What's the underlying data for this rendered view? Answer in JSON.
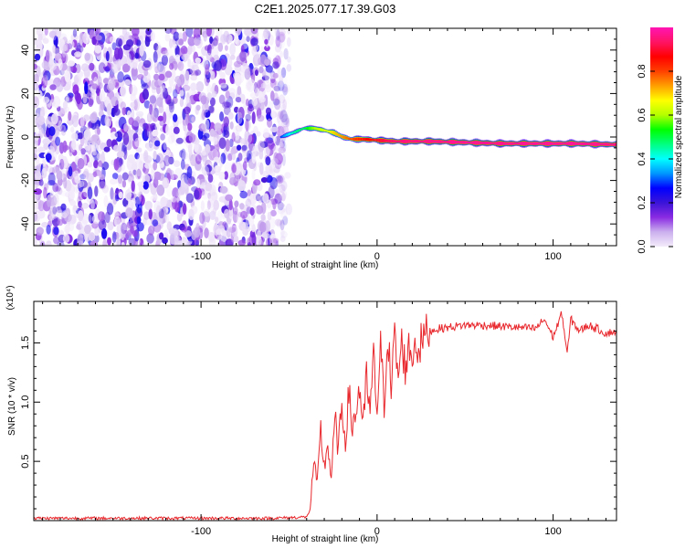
{
  "figure_title": "C2E1.2025.077.17.39.G03",
  "chart_data": [
    {
      "type": "heatmap",
      "title": "C2E1.2025.077.17.39.G03",
      "xlabel": "Height of straight line (km)",
      "ylabel": "Frequency (Hz)",
      "xlim": [
        -195,
        136
      ],
      "ylim": [
        -50,
        50
      ],
      "xticks": [
        -100,
        0,
        100
      ],
      "yticks": [
        -40,
        -20,
        0,
        20,
        40
      ],
      "colorbar": {
        "label": "Normalized spectral amplitude",
        "range": [
          0,
          1
        ],
        "ticks": [
          0.0,
          0.2,
          0.4,
          0.6,
          0.8
        ],
        "colors": [
          "#f4ecfb",
          "#cbb0ee",
          "#8a2be2",
          "#3b14d8",
          "#0000ff",
          "#0096ff",
          "#00ffff",
          "#00ff80",
          "#00ff00",
          "#b4ff00",
          "#ffff00",
          "#ffa000",
          "#ff4000",
          "#ff0000",
          "#ff1464",
          "#ff14b4"
        ]
      },
      "noise_region": {
        "x_range": [
          -195,
          -50
        ],
        "freq_range": [
          -50,
          50
        ],
        "amplitude_range": [
          0.0,
          0.25
        ]
      },
      "signal_track": [
        {
          "x": -55,
          "freq": 0,
          "amplitude": 0.3
        },
        {
          "x": -48,
          "freq": 2,
          "amplitude": 0.45
        },
        {
          "x": -42,
          "freq": 4,
          "amplitude": 0.5
        },
        {
          "x": -36,
          "freq": 4,
          "amplitude": 0.6
        },
        {
          "x": -30,
          "freq": 3,
          "amplitude": 0.65
        },
        {
          "x": -25,
          "freq": 2,
          "amplitude": 0.7
        },
        {
          "x": -20,
          "freq": 0,
          "amplitude": 0.75
        },
        {
          "x": -15,
          "freq": -1,
          "amplitude": 0.8
        },
        {
          "x": -8,
          "freq": -1,
          "amplitude": 0.85
        },
        {
          "x": 0,
          "freq": -1.5,
          "amplitude": 0.9
        },
        {
          "x": 10,
          "freq": -2,
          "amplitude": 0.95
        },
        {
          "x": 30,
          "freq": -2,
          "amplitude": 0.97
        },
        {
          "x": 50,
          "freq": -2.5,
          "amplitude": 0.98
        },
        {
          "x": 70,
          "freq": -3,
          "amplitude": 0.97
        },
        {
          "x": 90,
          "freq": -3,
          "amplitude": 0.98
        },
        {
          "x": 110,
          "freq": -3,
          "amplitude": 0.98
        },
        {
          "x": 136,
          "freq": -3.5,
          "amplitude": 0.97
        }
      ]
    },
    {
      "type": "line",
      "xlabel": "Height of straight line (km)",
      "ylabel": "SNR (10 * v/v)",
      "y_multiplier": "(x10⁴)",
      "xlim": [
        -195,
        136
      ],
      "ylim": [
        0,
        1.85
      ],
      "xticks": [
        -100,
        0,
        100
      ],
      "yticks": [
        0.5,
        1.0,
        1.5
      ],
      "ytick_labels": [
        "0.5",
        "1.0",
        "1.5"
      ],
      "color": "#e8282d",
      "series": [
        {
          "x": [
            -195,
            -150,
            -100,
            -60,
            -40,
            -38,
            -36,
            -34,
            -32,
            -30,
            -28,
            -26,
            -24,
            -22,
            -20,
            -18,
            -16,
            -14,
            -12,
            -10,
            -8,
            -6,
            -4,
            -2,
            0,
            2,
            4,
            6,
            8,
            10,
            12,
            14,
            16,
            18,
            20,
            22,
            24,
            26,
            28,
            30,
            35,
            40,
            50,
            60,
            70,
            80,
            90,
            95,
            100,
            105,
            108,
            110,
            115,
            120,
            125,
            130,
            136
          ],
          "values": [
            0.02,
            0.02,
            0.02,
            0.02,
            0.03,
            0.1,
            0.5,
            0.3,
            0.75,
            0.45,
            0.65,
            0.35,
            0.85,
            0.6,
            0.95,
            0.7,
            1.05,
            0.8,
            0.9,
            1.15,
            0.75,
            1.2,
            0.9,
            1.35,
            0.95,
            1.45,
            1.0,
            1.6,
            1.1,
            1.55,
            1.2,
            1.5,
            1.3,
            1.45,
            1.4,
            1.5,
            1.45,
            1.55,
            1.58,
            1.6,
            1.62,
            1.63,
            1.65,
            1.65,
            1.64,
            1.63,
            1.62,
            1.7,
            1.55,
            1.75,
            1.4,
            1.7,
            1.6,
            1.65,
            1.62,
            1.58,
            1.6
          ]
        }
      ]
    }
  ]
}
